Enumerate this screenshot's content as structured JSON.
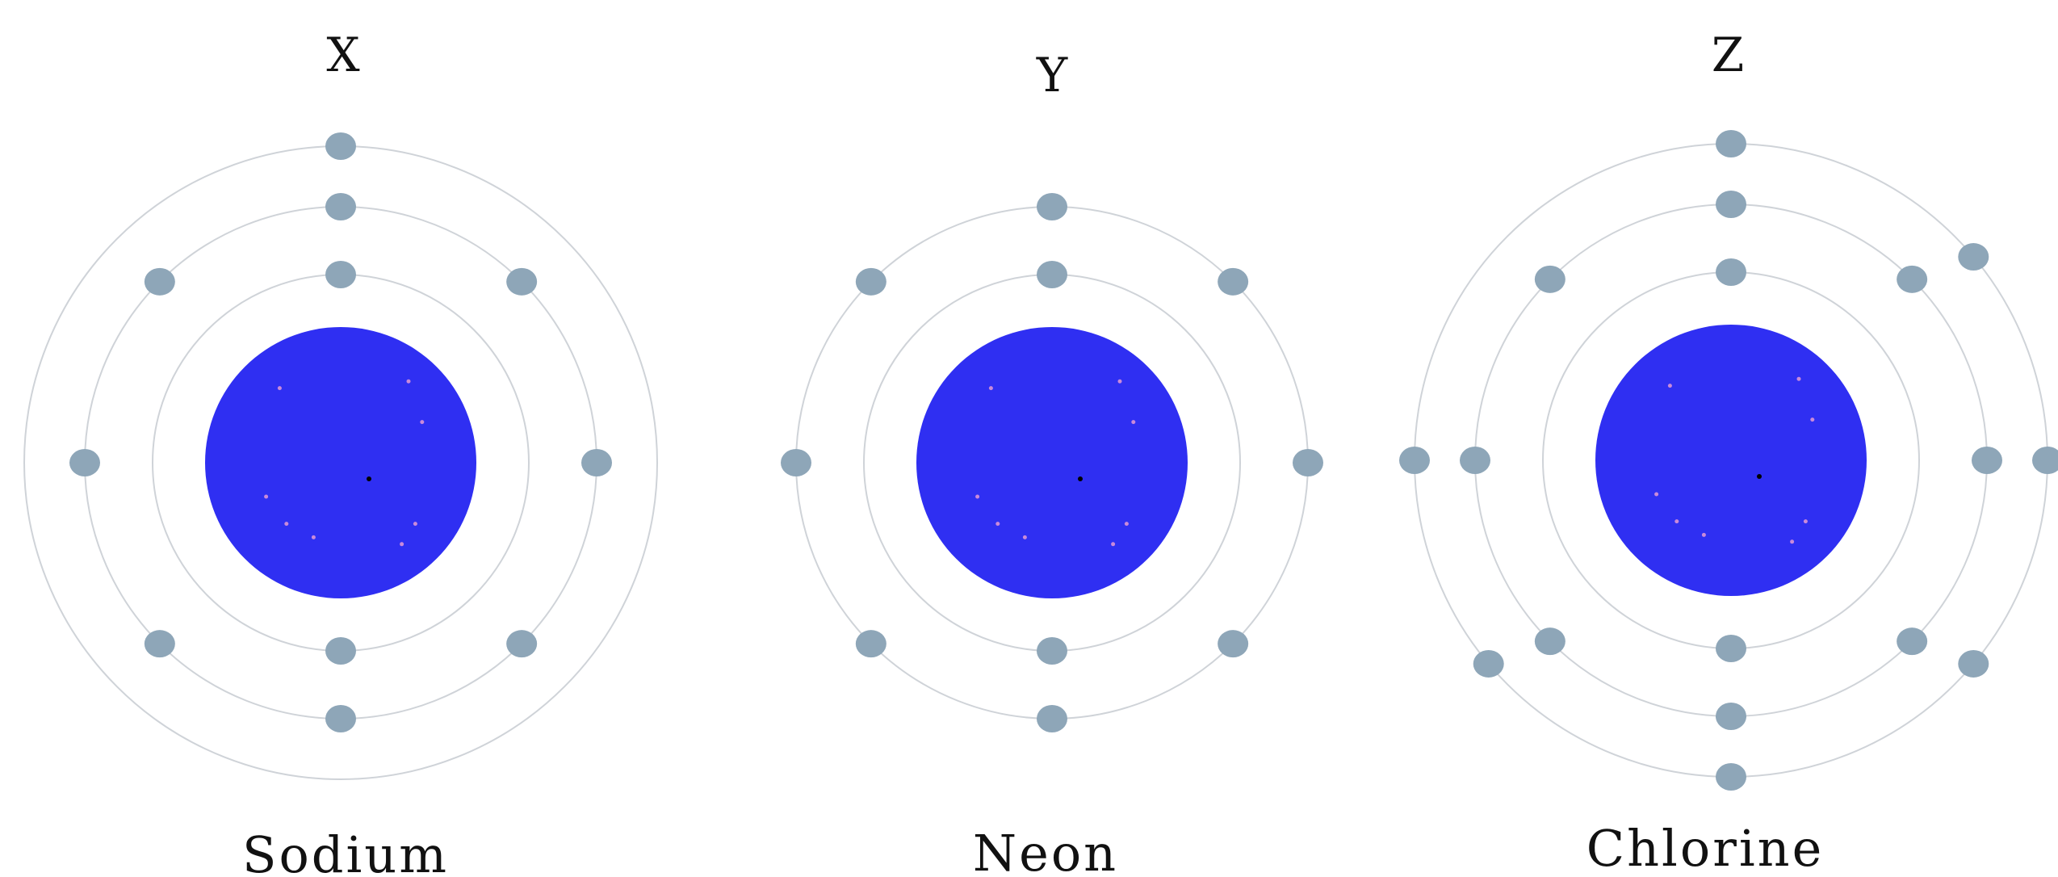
{
  "colors": {
    "nucleus": "#2f2ff2",
    "electron": "#8ea6b8",
    "shell": "#cfd3d8",
    "speck": "#c98ad9",
    "text": "#111111"
  },
  "atoms": [
    {
      "letter": "X",
      "name": "Sodium",
      "shells": [
        2,
        8,
        1
      ]
    },
    {
      "letter": "Y",
      "name": "Neon",
      "shells": [
        2,
        8
      ]
    },
    {
      "letter": "Z",
      "name": "Chlorine",
      "shells": [
        2,
        8,
        7
      ]
    }
  ]
}
